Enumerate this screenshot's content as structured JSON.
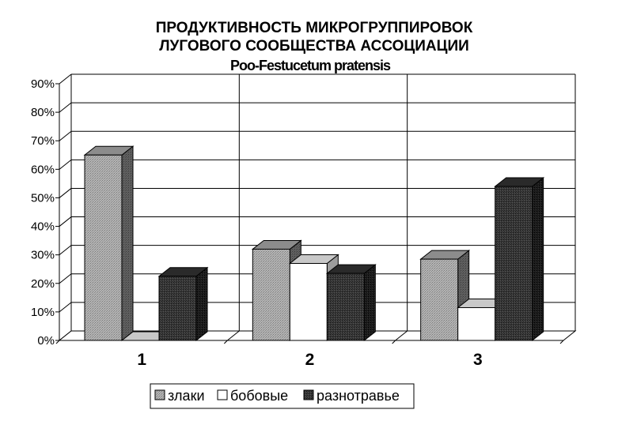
{
  "chart_data": {
    "type": "bar",
    "title_lines": [
      "ПРОДУКТИВНОСТЬ МИКРОГРУППИРОВОК",
      "ЛУГОВОГО СООБЩЕСТВА АССОЦИАЦИИ",
      "Poo-Festucetum pratensis"
    ],
    "categories": [
      "1",
      "2",
      "3"
    ],
    "series": [
      {
        "name": "злаки",
        "values": [
          65,
          32,
          28.5
        ],
        "color": "#a6a6a6",
        "pattern": "light"
      },
      {
        "name": "бобовые",
        "values": [
          0,
          27,
          11.5
        ],
        "color": "#ffffff",
        "pattern": "none"
      },
      {
        "name": "разнотравье",
        "values": [
          22.5,
          23.5,
          54
        ],
        "color": "#3a3a3a",
        "pattern": "dark"
      }
    ],
    "y_ticks": [
      "0%",
      "10%",
      "20%",
      "30%",
      "40%",
      "50%",
      "60%",
      "70%",
      "80%",
      "90%"
    ],
    "ylim": [
      0,
      90
    ],
    "y_unit": "%",
    "grid": true,
    "three_d": true,
    "legend_position": "bottom"
  }
}
